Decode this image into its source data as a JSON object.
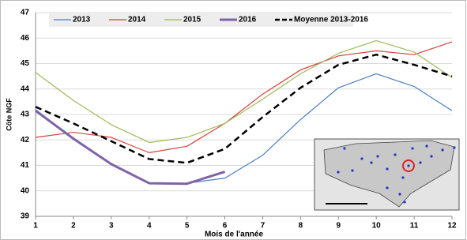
{
  "chart_data": {
    "type": "line",
    "x_label": "Mois de l'année",
    "y_label": "Côte NGF",
    "x": [
      1,
      2,
      3,
      4,
      5,
      6,
      7,
      8,
      9,
      10,
      11,
      12
    ],
    "xlim": [
      1,
      12
    ],
    "xticks": [
      1,
      2,
      3,
      4,
      5,
      6,
      7,
      8,
      9,
      10,
      11,
      12
    ],
    "ylim": [
      39,
      47
    ],
    "yticks": [
      39,
      40,
      41,
      42,
      43,
      44,
      45,
      46,
      47
    ],
    "grid": true,
    "legend": "top",
    "series": [
      {
        "name": "2013",
        "color": "#4a7fc1",
        "line_width": 1.2,
        "dashed": false,
        "values": [
          43.2,
          42.05,
          41.05,
          40.3,
          40.3,
          40.5,
          41.4,
          42.8,
          44.05,
          44.6,
          44.1,
          43.15
        ]
      },
      {
        "name": "2014",
        "color": "#d9403a",
        "line_width": 1.2,
        "dashed": false,
        "values": [
          42.1,
          42.3,
          42.1,
          41.5,
          41.75,
          42.65,
          43.8,
          44.75,
          45.3,
          45.5,
          45.35,
          45.85
        ]
      },
      {
        "name": "2015",
        "color": "#9bbb59",
        "line_width": 1.2,
        "dashed": false,
        "values": [
          44.65,
          43.55,
          42.6,
          41.9,
          42.1,
          42.65,
          43.6,
          44.6,
          45.4,
          45.9,
          45.45,
          44.45
        ]
      },
      {
        "name": "2016",
        "color": "#7f63a8",
        "line_width": 3,
        "dashed": false,
        "values": [
          43.15,
          42.05,
          41.05,
          40.3,
          40.28,
          40.75,
          null,
          null,
          null,
          null,
          null,
          null
        ]
      },
      {
        "name": "Moyenne 2013-2016",
        "color": "#000000",
        "line_width": 2.5,
        "dashed": true,
        "values": [
          43.3,
          42.65,
          41.95,
          41.25,
          41.1,
          41.65,
          42.9,
          44.05,
          44.95,
          45.35,
          44.95,
          44.5
        ]
      }
    ]
  }
}
